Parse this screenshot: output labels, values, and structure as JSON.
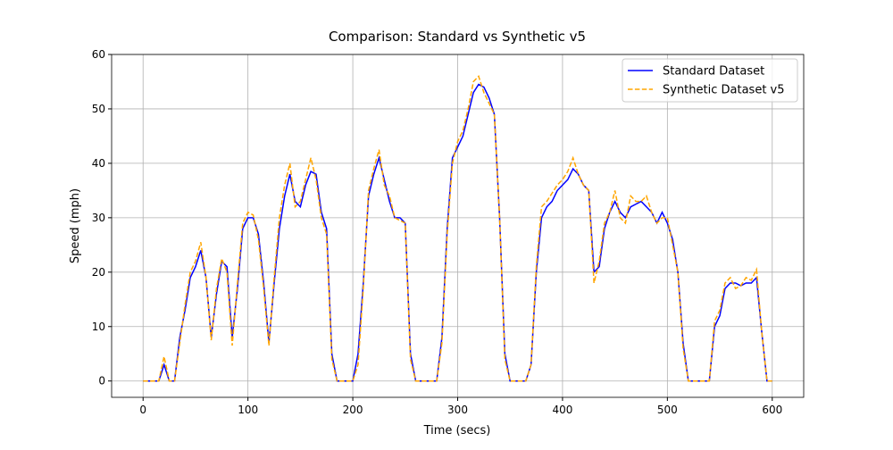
{
  "chart_data": {
    "type": "line",
    "title": "Comparison: Standard vs Synthetic v5",
    "xlabel": "Time (secs)",
    "ylabel": "Speed (mph)",
    "x": [
      0,
      5,
      10,
      15,
      20,
      25,
      30,
      35,
      40,
      45,
      50,
      55,
      60,
      65,
      70,
      75,
      80,
      85,
      90,
      95,
      100,
      105,
      110,
      115,
      120,
      125,
      130,
      135,
      140,
      145,
      150,
      155,
      160,
      165,
      170,
      175,
      180,
      185,
      190,
      195,
      200,
      205,
      210,
      215,
      220,
      225,
      230,
      235,
      240,
      245,
      250,
      255,
      260,
      265,
      270,
      275,
      280,
      285,
      290,
      295,
      300,
      305,
      310,
      315,
      320,
      325,
      330,
      335,
      340,
      345,
      350,
      355,
      360,
      365,
      370,
      375,
      380,
      385,
      390,
      395,
      400,
      405,
      410,
      415,
      420,
      425,
      430,
      435,
      440,
      445,
      450,
      455,
      460,
      465,
      470,
      475,
      480,
      485,
      490,
      495,
      500,
      505,
      510,
      515,
      520,
      525,
      530,
      535,
      540,
      545,
      550,
      555,
      560,
      565,
      570,
      575,
      580,
      585,
      590,
      595,
      600
    ],
    "series": [
      {
        "name": "Standard Dataset",
        "color": "#0000ff",
        "dash": "solid",
        "values": [
          0,
          0,
          0,
          0,
          3,
          0,
          0,
          8,
          13,
          19,
          21,
          24,
          19,
          8,
          16,
          22,
          21,
          8,
          17,
          28,
          30,
          30,
          27,
          18,
          7,
          18,
          28,
          34,
          38,
          33,
          32,
          36,
          38.5,
          38,
          31,
          28,
          5,
          0,
          0,
          0,
          0,
          5,
          18,
          34,
          38,
          41,
          37,
          33,
          30,
          30,
          29,
          5,
          0,
          0,
          0,
          0,
          0,
          8,
          28,
          41,
          43,
          45,
          49,
          53,
          54.5,
          54,
          52,
          49,
          30,
          5,
          0,
          0,
          0,
          0,
          3,
          20,
          30,
          32,
          33,
          35,
          36,
          37,
          39,
          38,
          36,
          35,
          20,
          21,
          28,
          31,
          33,
          31,
          30,
          32,
          32.5,
          33,
          32,
          31,
          29,
          31,
          29,
          26,
          20,
          7,
          0,
          0,
          0,
          0,
          0,
          10,
          12,
          17,
          18,
          18,
          17.5,
          18,
          18,
          19,
          9,
          0,
          0
        ]
      },
      {
        "name": "Synthetic Dataset v5",
        "color": "#ffa500",
        "dash": "dashed",
        "values": [
          0,
          0,
          0,
          0,
          4.5,
          0,
          0,
          7,
          14,
          20,
          22,
          25.5,
          19,
          7.5,
          17,
          22.5,
          20,
          6.5,
          18,
          29,
          31,
          30.5,
          26,
          17,
          6.5,
          19,
          30,
          36,
          40,
          32,
          33,
          37,
          41,
          37,
          30,
          27,
          4,
          0,
          0,
          0,
          0,
          3,
          17,
          35,
          39,
          42.5,
          36,
          34,
          30,
          29.5,
          29,
          4,
          0,
          0,
          0,
          0,
          0,
          7,
          27,
          40,
          44,
          46,
          50,
          55,
          56,
          53,
          51,
          49,
          30,
          4,
          0,
          0,
          0,
          0,
          3,
          21,
          32,
          33,
          34.5,
          36,
          37,
          38.5,
          41,
          38,
          36,
          35,
          18,
          22,
          29,
          31,
          35,
          30,
          29,
          34,
          33,
          33,
          34,
          31,
          29,
          30,
          30,
          25,
          20,
          6,
          0,
          0,
          0,
          0,
          0,
          11,
          13,
          18,
          19,
          17,
          17.5,
          19,
          18.5,
          20.5,
          9,
          0,
          0
        ]
      }
    ],
    "xlim": [
      -30,
      630
    ],
    "ylim": [
      -3,
      60
    ],
    "xticks": [
      0,
      100,
      200,
      300,
      400,
      500,
      600
    ],
    "yticks": [
      0,
      10,
      20,
      30,
      40,
      50,
      60
    ],
    "grid": true,
    "legend": "upper right"
  }
}
